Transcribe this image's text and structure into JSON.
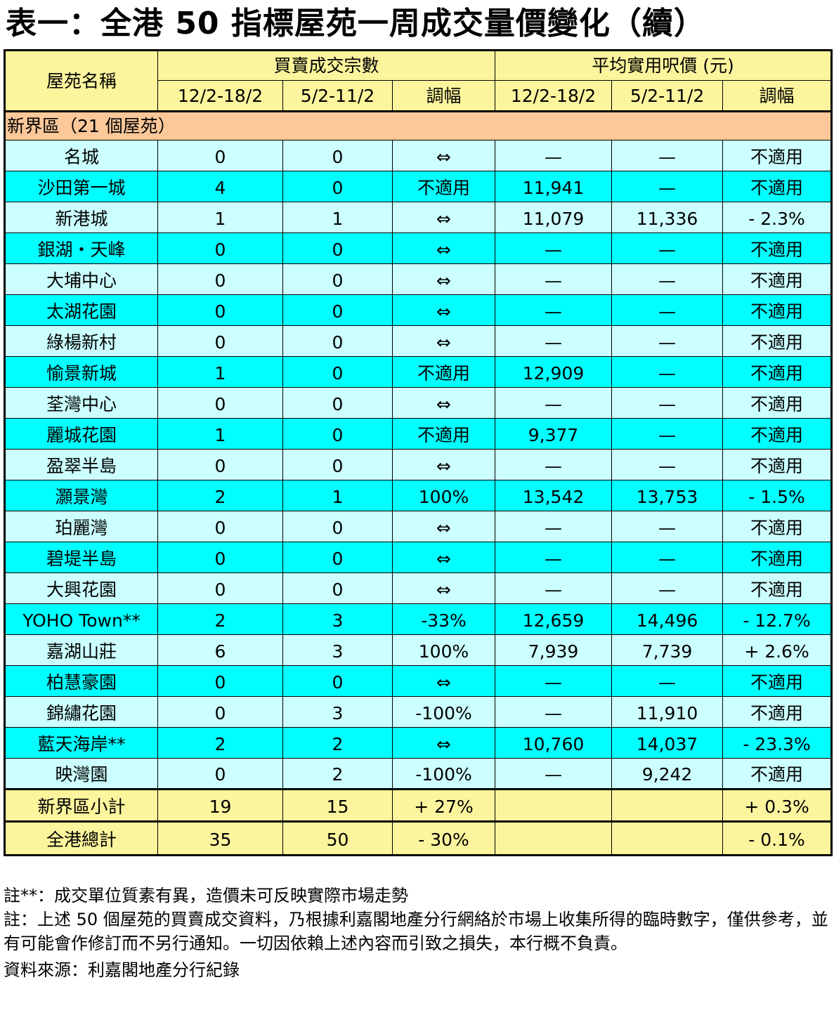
{
  "title": "表一：全港 50 指標屋苑一周成交量價變化（續）",
  "header": {
    "estate_name": "屋苑名稱",
    "volume_group": "買賣成交宗數",
    "price_group": "平均實用呎價 (元)",
    "period_current": "12/2-18/2",
    "period_previous": "5/2-11/2",
    "change": "調幅"
  },
  "section": "新界區（21 個屋苑）",
  "rows": [
    {
      "name": "名城",
      "vol_cur": "0",
      "vol_prev": "0",
      "vol_chg": "⇔",
      "price_cur": "—",
      "price_prev": "—",
      "price_chg": "不適用"
    },
    {
      "name": "沙田第一城",
      "vol_cur": "4",
      "vol_prev": "0",
      "vol_chg": "不適用",
      "price_cur": "11,941",
      "price_prev": "—",
      "price_chg": "不適用"
    },
    {
      "name": "新港城",
      "vol_cur": "1",
      "vol_prev": "1",
      "vol_chg": "⇔",
      "price_cur": "11,079",
      "price_prev": "11,336",
      "price_chg": "- 2.3%"
    },
    {
      "name": "銀湖・天峰",
      "vol_cur": "0",
      "vol_prev": "0",
      "vol_chg": "⇔",
      "price_cur": "—",
      "price_prev": "—",
      "price_chg": "不適用"
    },
    {
      "name": "大埔中心",
      "vol_cur": "0",
      "vol_prev": "0",
      "vol_chg": "⇔",
      "price_cur": "—",
      "price_prev": "—",
      "price_chg": "不適用"
    },
    {
      "name": "太湖花園",
      "vol_cur": "0",
      "vol_prev": "0",
      "vol_chg": "⇔",
      "price_cur": "—",
      "price_prev": "—",
      "price_chg": "不適用"
    },
    {
      "name": "綠楊新村",
      "vol_cur": "0",
      "vol_prev": "0",
      "vol_chg": "⇔",
      "price_cur": "—",
      "price_prev": "—",
      "price_chg": "不適用"
    },
    {
      "name": "愉景新城",
      "vol_cur": "1",
      "vol_prev": "0",
      "vol_chg": "不適用",
      "price_cur": "12,909",
      "price_prev": "—",
      "price_chg": "不適用"
    },
    {
      "name": "荃灣中心",
      "vol_cur": "0",
      "vol_prev": "0",
      "vol_chg": "⇔",
      "price_cur": "—",
      "price_prev": "—",
      "price_chg": "不適用"
    },
    {
      "name": "麗城花園",
      "vol_cur": "1",
      "vol_prev": "0",
      "vol_chg": "不適用",
      "price_cur": "9,377",
      "price_prev": "—",
      "price_chg": "不適用"
    },
    {
      "name": "盈翠半島",
      "vol_cur": "0",
      "vol_prev": "0",
      "vol_chg": "⇔",
      "price_cur": "—",
      "price_prev": "—",
      "price_chg": "不適用"
    },
    {
      "name": "灝景灣",
      "vol_cur": "2",
      "vol_prev": "1",
      "vol_chg": "100%",
      "price_cur": "13,542",
      "price_prev": "13,753",
      "price_chg": "- 1.5%"
    },
    {
      "name": "珀麗灣",
      "vol_cur": "0",
      "vol_prev": "0",
      "vol_chg": "⇔",
      "price_cur": "—",
      "price_prev": "—",
      "price_chg": "不適用"
    },
    {
      "name": "碧堤半島",
      "vol_cur": "0",
      "vol_prev": "0",
      "vol_chg": "⇔",
      "price_cur": "—",
      "price_prev": "—",
      "price_chg": "不適用"
    },
    {
      "name": "大興花園",
      "vol_cur": "0",
      "vol_prev": "0",
      "vol_chg": "⇔",
      "price_cur": "—",
      "price_prev": "—",
      "price_chg": "不適用"
    },
    {
      "name": "YOHO Town**",
      "vol_cur": "2",
      "vol_prev": "3",
      "vol_chg": "-33%",
      "price_cur": "12,659",
      "price_prev": "14,496",
      "price_chg": "- 12.7%"
    },
    {
      "name": "嘉湖山莊",
      "vol_cur": "6",
      "vol_prev": "3",
      "vol_chg": "100%",
      "price_cur": "7,939",
      "price_prev": "7,739",
      "price_chg": "+ 2.6%"
    },
    {
      "name": "柏慧豪園",
      "vol_cur": "0",
      "vol_prev": "0",
      "vol_chg": "⇔",
      "price_cur": "—",
      "price_prev": "—",
      "price_chg": "不適用"
    },
    {
      "name": "錦繡花園",
      "vol_cur": "0",
      "vol_prev": "3",
      "vol_chg": "-100%",
      "price_cur": "—",
      "price_prev": "11,910",
      "price_chg": "不適用"
    },
    {
      "name": "藍天海岸**",
      "vol_cur": "2",
      "vol_prev": "2",
      "vol_chg": "⇔",
      "price_cur": "10,760",
      "price_prev": "14,037",
      "price_chg": "- 23.3%"
    },
    {
      "name": "映灣園",
      "vol_cur": "0",
      "vol_prev": "2",
      "vol_chg": "-100%",
      "price_cur": "—",
      "price_prev": "9,242",
      "price_chg": "不適用"
    }
  ],
  "subtotal": {
    "name": "新界區小計",
    "vol_cur": "19",
    "vol_prev": "15",
    "vol_chg": "+ 27%",
    "price_cur": "",
    "price_prev": "",
    "price_chg": "+ 0.3%"
  },
  "total": {
    "name": "全港總計",
    "vol_cur": "35",
    "vol_prev": "50",
    "vol_chg": "- 30%",
    "price_cur": "",
    "price_prev": "",
    "price_chg": "- 0.1%"
  },
  "notes": {
    "note1": "註**：成交單位質素有異，造價未可反映實際市場走勢",
    "note2": "註：上述 50 個屋苑的買賣成交資料，乃根據利嘉閣地產分行網絡於市場上收集所得的臨時數字，僅供參考，並有可能會作修訂而不另行通知。一切因依賴上述內容而引致之損失，本行概不負責。",
    "source": "資料來源：利嘉閣地產分行紀錄"
  },
  "colors": {
    "header_bg": "#fdf59d",
    "section_bg": "#fcc899",
    "row_light": "#ccffff",
    "row_cyan": "#00ffff"
  }
}
